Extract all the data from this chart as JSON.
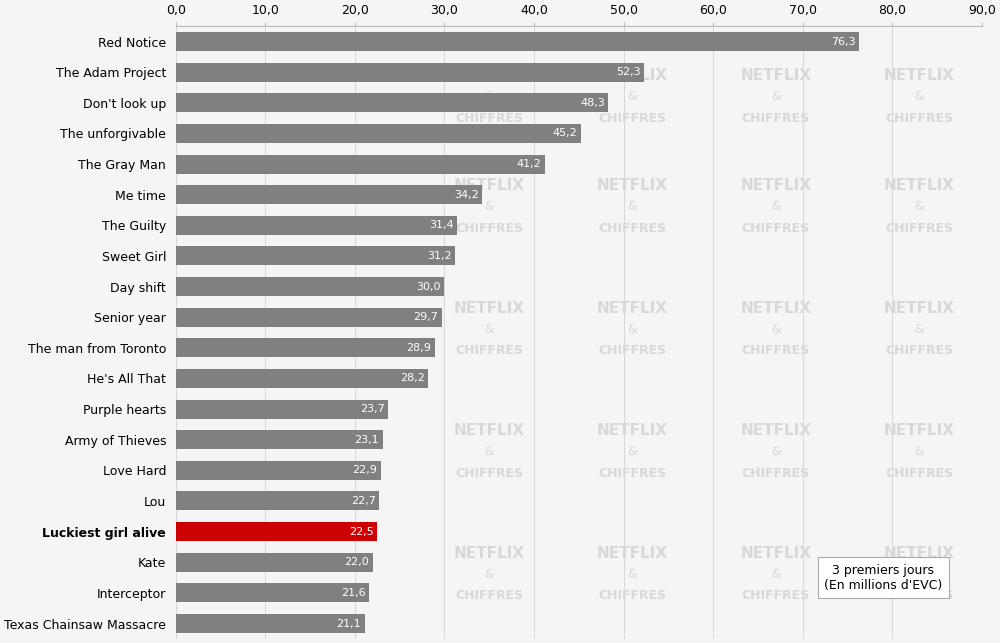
{
  "categories": [
    "Texas Chainsaw Massacre",
    "Interceptor",
    "Kate",
    "Luckiest girl alive",
    "Lou",
    "Love Hard",
    "Army of Thieves",
    "Purple hearts",
    "He's All That",
    "The man from Toronto",
    "Senior year",
    "Day shift",
    "Sweet Girl",
    "The Guilty",
    "Me time",
    "The Gray Man",
    "The unforgivable",
    "Don't look up",
    "The Adam Project",
    "Red Notice"
  ],
  "values": [
    21.1,
    21.6,
    22.0,
    22.5,
    22.7,
    22.9,
    23.1,
    23.7,
    28.2,
    28.9,
    29.7,
    30.0,
    31.2,
    31.4,
    34.2,
    41.2,
    45.2,
    48.3,
    52.3,
    76.3
  ],
  "highlight_index": 3,
  "bar_color": "#808080",
  "highlight_color": "#cc0000",
  "background_color": "#f5f5f5",
  "watermark_color": "#d8d8d8",
  "annotation_text": "3 premiers jours\n(En millions d'EVC)",
  "xlim": [
    0,
    90
  ],
  "xticks": [
    0,
    10,
    20,
    30,
    40,
    50,
    60,
    70,
    80,
    90
  ],
  "xtick_labels": [
    "0,0",
    "10,0",
    "20,0",
    "30,0",
    "40,0",
    "50,0",
    "60,0",
    "70,0",
    "80,0",
    "90,0"
  ],
  "label_fontsize": 9,
  "tick_fontsize": 9,
  "value_fontsize": 8,
  "annotation_fontsize": 9,
  "wm_fontsize_netflix": 11,
  "wm_fontsize_amp": 9,
  "wm_fontsize_chiffres": 9
}
